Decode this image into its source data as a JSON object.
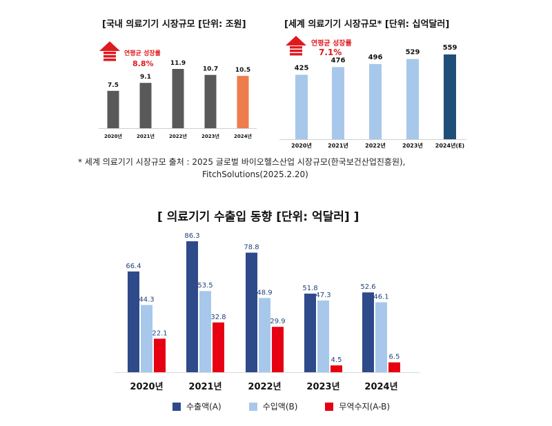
{
  "chart_data": [
    {
      "type": "bar",
      "title": "[국내 의료기기 시장규모 [단위: 조원]",
      "categories": [
        "2020년",
        "2021년",
        "2022년",
        "2023년",
        "2024년"
      ],
      "values": [
        7.5,
        9.1,
        11.9,
        10.7,
        10.5
      ],
      "value_labels": [
        "7.5",
        "9.1",
        "11.9",
        "10.7",
        "10.5"
      ],
      "colors": [
        "#595959",
        "#595959",
        "#595959",
        "#595959",
        "#ed7d4d"
      ],
      "annotation": {
        "label": "연평균 성장률",
        "value": "8.8%"
      },
      "ylim": [
        0,
        12
      ]
    },
    {
      "type": "bar",
      "title": "[세계 의료기기 시장규모* [단위: 십억달러]",
      "categories": [
        "2020년",
        "2021년",
        "2022년",
        "2023년",
        "2024년(E)"
      ],
      "values": [
        425,
        476,
        496,
        529,
        559
      ],
      "value_labels": [
        "425",
        "476",
        "496",
        "529",
        "559"
      ],
      "colors": [
        "#a7c8ea",
        "#a7c8ea",
        "#a7c8ea",
        "#a7c8ea",
        "#1f4e79"
      ],
      "annotation": {
        "label": "연평균 성장률",
        "value": "7.1%"
      },
      "ylim": [
        0,
        560
      ]
    },
    {
      "type": "bar",
      "title": "[ 의료기기 수출입 동향 [단위: 억달러] ]",
      "categories": [
        "2020년",
        "2021년",
        "2022년",
        "2023년",
        "2024년"
      ],
      "series": [
        {
          "name": "수출액(A)",
          "values": [
            66.4,
            86.3,
            78.8,
            51.8,
            52.6
          ],
          "labels": [
            "66.4",
            "86.3",
            "78.8",
            "51.8",
            "52.6"
          ],
          "color": "#2e4a8a"
        },
        {
          "name": "수입액(B)",
          "values": [
            44.3,
            53.5,
            48.9,
            47.3,
            46.1
          ],
          "labels": [
            "44.3",
            "53.5",
            "48.9",
            "47.3",
            "46.1"
          ],
          "color": "#a7c8ea"
        },
        {
          "name": "무역수지(A-B)",
          "values": [
            22.1,
            32.8,
            29.9,
            4.5,
            6.5
          ],
          "labels": [
            "22.1",
            "32.8",
            "29.9",
            "4.5",
            "6.5"
          ],
          "color": "#e60012"
        }
      ],
      "ylim": [
        0,
        90
      ],
      "legend": "bottom"
    }
  ],
  "titles": {
    "domestic": "[국내 의료기기 시장규모 [단위: 조원]",
    "global": "[세계 의료기기 시장규모* [단위: 십억달러]",
    "trade": "[ 의료기기 수출입 동향 [단위: 억달러] ]"
  },
  "footnote": {
    "line1": "*  세계 의료기기 시장규모 출처 : 2025 글로벌 바이오헬스산업 시장규모(한국보건산업진흥원),",
    "line2": "FitchSolutions(2025.2.20)"
  },
  "legend": [
    "수출액(A)",
    "수입액(B)",
    "무역수지(A-B)"
  ]
}
